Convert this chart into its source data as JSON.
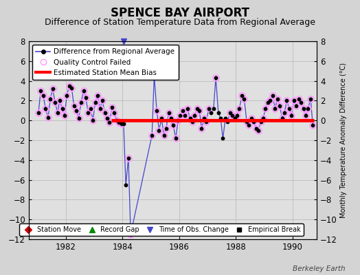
{
  "title": "SPENCE BAY AIRPORT",
  "subtitle": "Difference of Station Temperature Data from Regional Average",
  "ylabel": "Monthly Temperature Anomaly Difference (°C)",
  "watermark": "Berkeley Earth",
  "xlim": [
    1980.7,
    1990.85
  ],
  "ylim": [
    -12,
    8
  ],
  "yticks": [
    -12,
    -10,
    -8,
    -6,
    -4,
    -2,
    0,
    2,
    4,
    6,
    8
  ],
  "xticks": [
    1982,
    1984,
    1986,
    1988,
    1990
  ],
  "bg_color": "#d4d4d4",
  "plot_bg_color": "#e0e0e0",
  "bias_line_start": 1983.6,
  "bias_line_end": 1990.75,
  "bias_line_value": 0.0,
  "main_line_color": "#4444cc",
  "main_marker_color": "#000000",
  "qc_failed_color": "#ff99ff",
  "bias_color": "#ff0000",
  "grid_color": "#bbbbbb",
  "title_fontsize": 12,
  "subtitle_fontsize": 9,
  "data_x": [
    1981.04,
    1981.12,
    1981.21,
    1981.29,
    1981.38,
    1981.46,
    1981.54,
    1981.63,
    1981.71,
    1981.79,
    1981.88,
    1981.96,
    1982.04,
    1982.12,
    1982.21,
    1982.29,
    1982.38,
    1982.46,
    1982.54,
    1982.63,
    1982.71,
    1982.79,
    1982.88,
    1982.96,
    1983.04,
    1983.12,
    1983.21,
    1983.29,
    1983.38,
    1983.46,
    1983.54,
    1983.63,
    1983.71,
    1983.79,
    1983.88,
    1983.96,
    1984.04,
    1984.12,
    1984.21,
    1984.29,
    1985.04,
    1985.12,
    1985.21,
    1985.29,
    1985.38,
    1985.46,
    1985.54,
    1985.63,
    1985.71,
    1985.79,
    1985.88,
    1985.96,
    1986.04,
    1986.12,
    1986.21,
    1986.29,
    1986.38,
    1986.46,
    1986.54,
    1986.63,
    1986.71,
    1986.79,
    1986.88,
    1986.96,
    1987.04,
    1987.12,
    1987.21,
    1987.29,
    1987.38,
    1987.46,
    1987.54,
    1987.63,
    1987.71,
    1987.79,
    1987.88,
    1987.96,
    1988.04,
    1988.12,
    1988.21,
    1988.29,
    1988.38,
    1988.46,
    1988.54,
    1988.63,
    1988.71,
    1988.79,
    1988.88,
    1988.96,
    1989.04,
    1989.12,
    1989.21,
    1989.29,
    1989.38,
    1989.46,
    1989.54,
    1989.63,
    1989.71,
    1989.79,
    1989.88,
    1989.96,
    1990.04,
    1990.12,
    1990.21,
    1990.29,
    1990.38,
    1990.46,
    1990.54,
    1990.63,
    1990.71
  ],
  "data_y": [
    0.8,
    3.0,
    2.5,
    1.2,
    0.3,
    2.2,
    3.2,
    1.8,
    0.8,
    2.0,
    1.2,
    0.5,
    2.5,
    3.5,
    3.3,
    1.5,
    1.0,
    0.2,
    1.8,
    3.0,
    2.3,
    0.8,
    1.2,
    0.0,
    1.8,
    2.5,
    1.2,
    2.0,
    0.8,
    0.2,
    -0.2,
    1.3,
    0.8,
    0.0,
    -0.2,
    -0.3,
    -0.3,
    -6.5,
    -3.8,
    -11.5,
    -1.5,
    4.5,
    1.0,
    -1.0,
    0.2,
    -1.5,
    -0.8,
    0.8,
    0.2,
    -0.5,
    -1.8,
    0.0,
    0.5,
    1.0,
    0.5,
    1.2,
    0.2,
    -0.1,
    0.5,
    1.2,
    1.0,
    -0.8,
    0.2,
    -0.1,
    1.2,
    0.8,
    1.2,
    4.3,
    0.8,
    0.2,
    -1.8,
    0.2,
    -0.1,
    0.8,
    0.5,
    0.2,
    0.5,
    1.2,
    2.5,
    2.2,
    -0.1,
    -0.5,
    0.2,
    -0.1,
    -0.8,
    -1.0,
    -0.1,
    0.2,
    1.2,
    1.8,
    2.0,
    2.5,
    1.2,
    2.2,
    1.5,
    0.2,
    0.8,
    2.0,
    1.2,
    0.5,
    2.0,
    1.5,
    2.2,
    1.8,
    1.2,
    0.5,
    1.2,
    2.2,
    -0.5
  ],
  "qc_failed_x": [
    1981.04,
    1981.12,
    1981.21,
    1981.29,
    1981.38,
    1981.46,
    1981.54,
    1981.63,
    1981.71,
    1981.79,
    1981.88,
    1981.96,
    1982.04,
    1982.12,
    1982.21,
    1982.29,
    1982.38,
    1982.46,
    1982.54,
    1982.63,
    1982.71,
    1982.79,
    1982.88,
    1982.96,
    1983.04,
    1983.12,
    1983.21,
    1983.29,
    1983.38,
    1983.46,
    1983.54,
    1983.63,
    1983.71,
    1983.79,
    1983.88,
    1983.96,
    1984.21,
    1984.29,
    1985.04,
    1985.12,
    1985.21,
    1985.29,
    1985.38,
    1985.46,
    1985.54,
    1985.63,
    1985.71,
    1985.79,
    1985.88,
    1985.96,
    1986.04,
    1986.12,
    1986.21,
    1986.29,
    1986.38,
    1986.46,
    1986.54,
    1986.63,
    1986.71,
    1986.79,
    1986.88,
    1986.96,
    1987.04,
    1987.29,
    1987.79,
    1987.88,
    1987.96,
    1988.04,
    1988.12,
    1988.21,
    1988.29,
    1988.38,
    1988.46,
    1988.54,
    1988.63,
    1988.71,
    1988.79,
    1988.88,
    1988.96,
    1989.04,
    1989.12,
    1989.21,
    1989.29,
    1989.38,
    1989.46,
    1989.54,
    1989.63,
    1989.71,
    1989.79,
    1989.88,
    1989.96,
    1990.04,
    1990.12,
    1990.21,
    1990.29,
    1990.38,
    1990.46,
    1990.54,
    1990.63,
    1990.71
  ],
  "qc_failed_y": [
    0.8,
    3.0,
    2.5,
    1.2,
    0.3,
    2.2,
    3.2,
    1.8,
    0.8,
    2.0,
    1.2,
    0.5,
    2.5,
    3.5,
    3.3,
    1.5,
    1.0,
    0.2,
    1.8,
    3.0,
    2.3,
    0.8,
    1.2,
    0.0,
    1.8,
    2.5,
    1.2,
    2.0,
    0.8,
    0.2,
    -0.2,
    1.3,
    0.8,
    0.0,
    -0.2,
    -0.3,
    -3.8,
    -11.5,
    -1.5,
    4.5,
    1.0,
    -1.0,
    0.2,
    -1.5,
    -0.8,
    0.8,
    0.2,
    -0.5,
    -1.8,
    0.0,
    0.5,
    1.0,
    0.5,
    1.2,
    0.2,
    -0.1,
    0.5,
    1.2,
    1.0,
    -0.8,
    0.2,
    -0.1,
    1.2,
    4.3,
    0.8,
    0.5,
    0.2,
    0.5,
    1.2,
    2.5,
    2.2,
    -0.1,
    -0.5,
    0.2,
    -0.1,
    -0.8,
    -1.0,
    -0.1,
    0.2,
    1.2,
    1.8,
    2.0,
    2.5,
    1.2,
    2.2,
    1.5,
    0.2,
    0.8,
    2.0,
    1.2,
    0.5,
    2.0,
    1.5,
    2.2,
    1.8,
    1.2,
    0.5,
    1.2,
    2.2,
    -0.5
  ],
  "time_obs_change_x": 1984.04,
  "record_gap_start": 1984.3,
  "record_gap_end": 1985.0
}
